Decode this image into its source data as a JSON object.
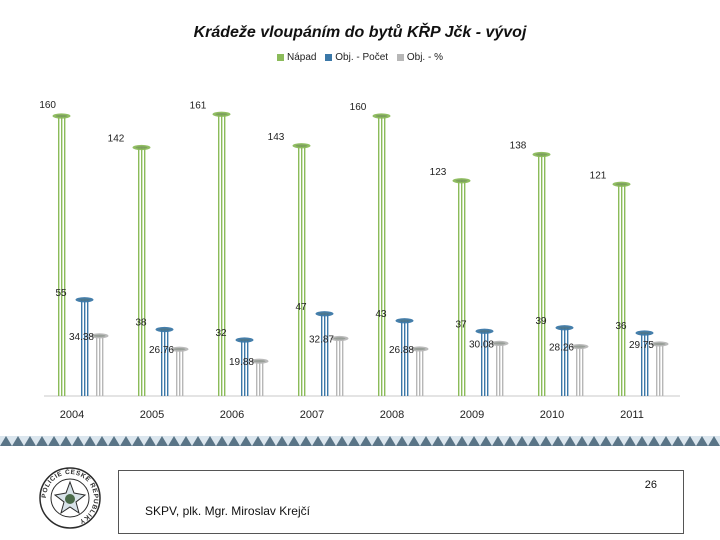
{
  "chart_data": {
    "type": "bar",
    "title": "Krádeže vloupáním do bytů KŘP Jčk - vývoj",
    "categories": [
      "2004",
      "2005",
      "2006",
      "2007",
      "2008",
      "2009",
      "2010",
      "2011"
    ],
    "series": [
      {
        "name": "Nápad",
        "values": [
          160,
          142,
          161,
          143,
          160,
          123,
          138,
          121
        ],
        "color": "#8bbb5a"
      },
      {
        "name": "Obj. - Počet",
        "values": [
          55,
          38,
          32,
          47,
          43,
          37,
          39,
          36
        ],
        "color": "#3b78a8"
      },
      {
        "name": "Obj. - %",
        "values": [
          34.38,
          26.76,
          19.88,
          32.87,
          26.88,
          30.08,
          28.26,
          29.75
        ],
        "color": "#b7b7b7"
      }
    ],
    "ylim": [
      0,
      170
    ],
    "grid": false,
    "legend": "top-center"
  },
  "footer": {
    "page_number": "26",
    "author": "SKPV, plk. Mgr. Miroslav Krejčí"
  },
  "logo": {
    "icon": "police-czech-republic-emblem",
    "text": "POLICIE ČESKÉ REPUBLIKY"
  },
  "colors": {
    "band_dark": "#2f4f64",
    "band_light": "#dbe6ee"
  }
}
